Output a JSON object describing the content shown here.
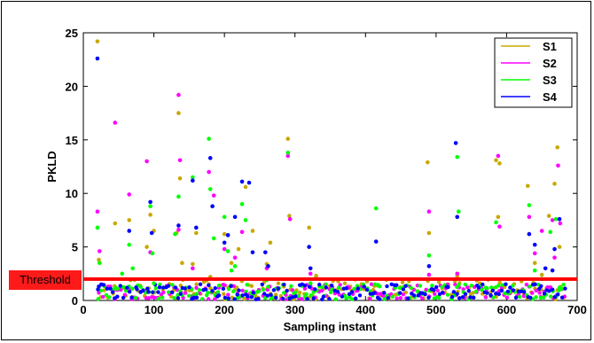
{
  "chart_data": {
    "type": "scatter",
    "title": "",
    "xlabel": "Sampling instant",
    "ylabel": "PKLD",
    "xlim": [
      0,
      700
    ],
    "ylim": [
      0,
      25
    ],
    "x_ticks": [
      0,
      100,
      200,
      300,
      400,
      500,
      600,
      700
    ],
    "y_ticks": [
      0,
      5,
      10,
      15,
      20,
      25
    ],
    "legend_position": "top-right",
    "threshold": {
      "label": "Threshold",
      "value": 2.0,
      "color": "#ff0000"
    },
    "series": [
      {
        "name": "S1",
        "color": "#c8a800",
        "points": [
          [
            20,
            24.2
          ],
          [
            22,
            3.8
          ],
          [
            45,
            7.2
          ],
          [
            65,
            7.5
          ],
          [
            90,
            5.0
          ],
          [
            95,
            8.0
          ],
          [
            100,
            6.5
          ],
          [
            132,
            6.3
          ],
          [
            135,
            17.5
          ],
          [
            137,
            11.4
          ],
          [
            140,
            3.5
          ],
          [
            155,
            3.4
          ],
          [
            160,
            6.3
          ],
          [
            180,
            2.2
          ],
          [
            200,
            6.2
          ],
          [
            210,
            3.5
          ],
          [
            220,
            4.8
          ],
          [
            230,
            10.6
          ],
          [
            240,
            6.5
          ],
          [
            260,
            3.4
          ],
          [
            265,
            5.4
          ],
          [
            290,
            15.1
          ],
          [
            292,
            7.9
          ],
          [
            320,
            6.8
          ],
          [
            330,
            2.3
          ],
          [
            488,
            12.9
          ],
          [
            490,
            6.3
          ],
          [
            530,
            2.3
          ],
          [
            585,
            13.1
          ],
          [
            590,
            12.8
          ],
          [
            588,
            7.8
          ],
          [
            630,
            10.7
          ],
          [
            640,
            3.5
          ],
          [
            650,
            2.4
          ],
          [
            660,
            7.9
          ],
          [
            668,
            10.9
          ],
          [
            672,
            14.3
          ],
          [
            675,
            5.0
          ]
        ]
      },
      {
        "name": "S2",
        "color": "#ff00ff",
        "points": [
          [
            20,
            8.3
          ],
          [
            23,
            4.6
          ],
          [
            45,
            16.6
          ],
          [
            65,
            9.9
          ],
          [
            90,
            13.0
          ],
          [
            95,
            4.5
          ],
          [
            135,
            19.2
          ],
          [
            137,
            13.1
          ],
          [
            135,
            6.6
          ],
          [
            155,
            3.0
          ],
          [
            178,
            12.0
          ],
          [
            185,
            9.8
          ],
          [
            200,
            4.8
          ],
          [
            215,
            4.0
          ],
          [
            225,
            6.4
          ],
          [
            260,
            3.0
          ],
          [
            290,
            13.5
          ],
          [
            293,
            7.6
          ],
          [
            322,
            2.5
          ],
          [
            490,
            8.3
          ],
          [
            490,
            2.4
          ],
          [
            530,
            2.5
          ],
          [
            588,
            13.5
          ],
          [
            590,
            6.9
          ],
          [
            632,
            7.8
          ],
          [
            640,
            4.4
          ],
          [
            650,
            6.5
          ],
          [
            665,
            7.5
          ],
          [
            668,
            4.0
          ],
          [
            673,
            12.6
          ],
          [
            676,
            7.2
          ]
        ]
      },
      {
        "name": "S3",
        "color": "#00ff00",
        "points": [
          [
            20,
            6.8
          ],
          [
            23,
            3.5
          ],
          [
            55,
            2.5
          ],
          [
            65,
            5.2
          ],
          [
            70,
            3.0
          ],
          [
            95,
            8.8
          ],
          [
            98,
            4.4
          ],
          [
            100,
            1.6
          ],
          [
            130,
            6.2
          ],
          [
            135,
            9.7
          ],
          [
            155,
            11.5
          ],
          [
            178,
            15.1
          ],
          [
            180,
            10.4
          ],
          [
            185,
            5.8
          ],
          [
            200,
            7.8
          ],
          [
            205,
            4.6
          ],
          [
            210,
            2.8
          ],
          [
            215,
            3.2
          ],
          [
            225,
            9.0
          ],
          [
            230,
            7.5
          ],
          [
            260,
            1.9
          ],
          [
            290,
            13.8
          ],
          [
            322,
            1.6
          ],
          [
            415,
            8.6
          ],
          [
            490,
            4.2
          ],
          [
            530,
            13.4
          ],
          [
            532,
            8.3
          ],
          [
            585,
            7.3
          ],
          [
            632,
            8.9
          ],
          [
            640,
            2.8
          ],
          [
            650,
            2.0
          ],
          [
            662,
            6.4
          ],
          [
            670,
            7.6
          ],
          [
            675,
            1.2
          ]
        ]
      },
      {
        "name": "S4",
        "color": "#0000ff",
        "points": [
          [
            20,
            22.6
          ],
          [
            22,
            1.3
          ],
          [
            65,
            6.5
          ],
          [
            95,
            9.2
          ],
          [
            97,
            6.3
          ],
          [
            135,
            7.0
          ],
          [
            155,
            11.2
          ],
          [
            160,
            6.8
          ],
          [
            180,
            13.3
          ],
          [
            183,
            8.8
          ],
          [
            200,
            5.4
          ],
          [
            205,
            6.1
          ],
          [
            215,
            7.8
          ],
          [
            225,
            11.1
          ],
          [
            235,
            11.0
          ],
          [
            240,
            4.5
          ],
          [
            258,
            4.5
          ],
          [
            262,
            3.2
          ],
          [
            320,
            5.0
          ],
          [
            322,
            3.0
          ],
          [
            415,
            5.5
          ],
          [
            490,
            3.2
          ],
          [
            528,
            14.7
          ],
          [
            530,
            7.8
          ],
          [
            632,
            6.2
          ],
          [
            640,
            5.2
          ],
          [
            655,
            3.0
          ],
          [
            665,
            2.8
          ],
          [
            668,
            4.8
          ],
          [
            675,
            7.6
          ]
        ]
      }
    ],
    "dense_band": {
      "x_range": [
        20,
        680
      ],
      "y_range": [
        0.1,
        2.0
      ]
    }
  }
}
